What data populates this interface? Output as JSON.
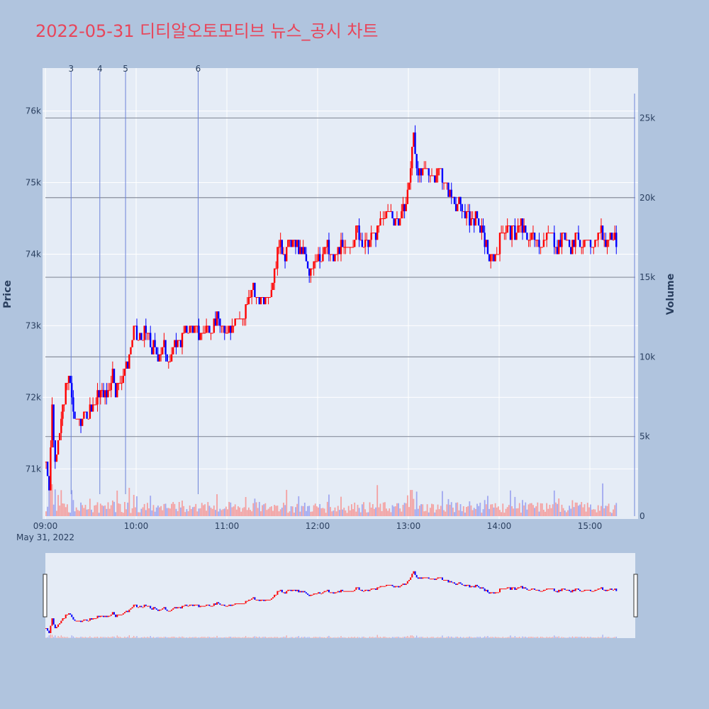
{
  "title": "2022-05-31 디티알오토모티브 뉴스_공시 차트",
  "chart_data": {
    "type": "candlestick",
    "date_label": "May 31, 2022",
    "x_start": "09:00",
    "x_end": "15:30",
    "xlim": [
      "09:00",
      "15:30"
    ],
    "x_ticks": [
      "09:00",
      "10:00",
      "11:00",
      "12:00",
      "13:00",
      "14:00",
      "15:00"
    ],
    "y_title": "Price",
    "y_ticks": [
      71000,
      72000,
      73000,
      74000,
      75000,
      76000
    ],
    "y_tick_labels": [
      "71k",
      "72k",
      "73k",
      "74k",
      "75k",
      "76k"
    ],
    "ylim": [
      70300,
      76600
    ],
    "y2_title": "Volume",
    "y2_ticks": [
      0,
      5000,
      10000,
      15000,
      20000,
      25000
    ],
    "y2_tick_labels": [
      "0",
      "5k",
      "10k",
      "15k",
      "20k",
      "25k"
    ],
    "y2lim": [
      0,
      26000
    ],
    "volume_reference_lines": [
      5000,
      10000,
      15000,
      20000,
      25000
    ],
    "news_markers": [
      {
        "label": "3",
        "time": "09:17"
      },
      {
        "label": "4",
        "time": "09:36"
      },
      {
        "label": "5",
        "time": "09:53"
      },
      {
        "label": "6",
        "time": "10:41"
      }
    ],
    "up_color": "#ff0000",
    "down_color": "#0000ff",
    "price_path": [
      [
        "09:00",
        71100
      ],
      [
        "09:02",
        70800
      ],
      [
        "09:04",
        71900
      ],
      [
        "09:06",
        71100
      ],
      [
        "09:08",
        71500
      ],
      [
        "09:10",
        71700
      ],
      [
        "09:12",
        71900
      ],
      [
        "09:14",
        72300
      ],
      [
        "09:16",
        72200
      ],
      [
        "09:18",
        71800
      ],
      [
        "09:20",
        71650
      ],
      [
        "09:24",
        71700
      ],
      [
        "09:28",
        71800
      ],
      [
        "09:32",
        71900
      ],
      [
        "09:36",
        72100
      ],
      [
        "09:40",
        72000
      ],
      [
        "09:44",
        72400
      ],
      [
        "09:46",
        72100
      ],
      [
        "09:50",
        72300
      ],
      [
        "09:54",
        72500
      ],
      [
        "09:58",
        72900
      ],
      [
        "10:02",
        72800
      ],
      [
        "10:06",
        72900
      ],
      [
        "10:10",
        72700
      ],
      [
        "10:14",
        72600
      ],
      [
        "10:18",
        72700
      ],
      [
        "10:22",
        72500
      ],
      [
        "10:26",
        72800
      ],
      [
        "10:30",
        72800
      ],
      [
        "10:34",
        73000
      ],
      [
        "10:38",
        72900
      ],
      [
        "10:42",
        72900
      ],
      [
        "10:46",
        73000
      ],
      [
        "10:50",
        73000
      ],
      [
        "10:54",
        73100
      ],
      [
        "10:58",
        72900
      ],
      [
        "11:02",
        73000
      ],
      [
        "11:06",
        73100
      ],
      [
        "11:10",
        73100
      ],
      [
        "11:14",
        73300
      ],
      [
        "11:17",
        73600
      ],
      [
        "11:20",
        73300
      ],
      [
        "11:24",
        73400
      ],
      [
        "11:28",
        73500
      ],
      [
        "11:32",
        73900
      ],
      [
        "11:34",
        74200
      ],
      [
        "11:38",
        74000
      ],
      [
        "11:42",
        74200
      ],
      [
        "11:46",
        74100
      ],
      [
        "11:50",
        74000
      ],
      [
        "11:54",
        73700
      ],
      [
        "11:58",
        74000
      ],
      [
        "12:02",
        74000
      ],
      [
        "12:06",
        74100
      ],
      [
        "12:10",
        73900
      ],
      [
        "12:14",
        74100
      ],
      [
        "12:18",
        74000
      ],
      [
        "12:22",
        74200
      ],
      [
        "12:26",
        74300
      ],
      [
        "12:30",
        74100
      ],
      [
        "12:34",
        74200
      ],
      [
        "12:38",
        74300
      ],
      [
        "12:42",
        74500
      ],
      [
        "12:46",
        74600
      ],
      [
        "12:50",
        74500
      ],
      [
        "12:54",
        74500
      ],
      [
        "12:58",
        74700
      ],
      [
        "13:00",
        75000
      ],
      [
        "13:02",
        75400
      ],
      [
        "13:03",
        75700
      ],
      [
        "13:05",
        75200
      ],
      [
        "13:08",
        75100
      ],
      [
        "13:12",
        75200
      ],
      [
        "13:16",
        75100
      ],
      [
        "13:20",
        75200
      ],
      [
        "13:24",
        75000
      ],
      [
        "13:28",
        74800
      ],
      [
        "13:32",
        74700
      ],
      [
        "13:36",
        74600
      ],
      [
        "13:40",
        74500
      ],
      [
        "13:44",
        74500
      ],
      [
        "13:48",
        74300
      ],
      [
        "13:51",
        74100
      ],
      [
        "13:54",
        73900
      ],
      [
        "13:58",
        74000
      ],
      [
        "14:02",
        74400
      ],
      [
        "14:06",
        74300
      ],
      [
        "14:10",
        74300
      ],
      [
        "14:14",
        74400
      ],
      [
        "14:18",
        74200
      ],
      [
        "14:22",
        74300
      ],
      [
        "14:26",
        74200
      ],
      [
        "14:30",
        74200
      ],
      [
        "14:34",
        74300
      ],
      [
        "14:38",
        74100
      ],
      [
        "14:42",
        74300
      ],
      [
        "14:46",
        74100
      ],
      [
        "14:50",
        74200
      ],
      [
        "14:54",
        74200
      ],
      [
        "14:58",
        74100
      ],
      [
        "15:02",
        74200
      ],
      [
        "15:06",
        74300
      ],
      [
        "15:10",
        74200
      ],
      [
        "15:14",
        74300
      ],
      [
        "15:18",
        74100
      ]
    ]
  }
}
